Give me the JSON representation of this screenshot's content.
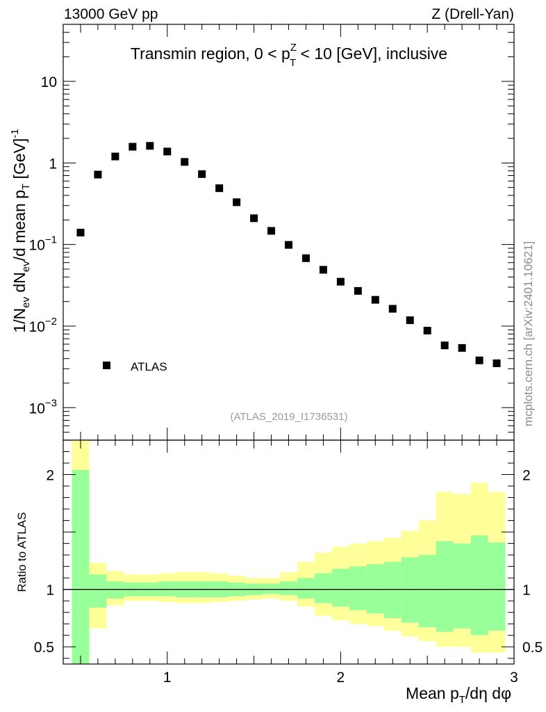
{
  "header": {
    "left": "13000 GeV pp",
    "right": "Z (Drell-Yan)"
  },
  "side_label": "mcplots.cern.ch [arXiv:2401.10621]",
  "reference": "(ATLAS_2019_I1736531)",
  "colors": {
    "band_inner": "#99ff99",
    "band_outer": "#ffff99",
    "marker": "#000000"
  },
  "chart_data": [
    {
      "type": "scatter",
      "panel": "main",
      "title": "Transmin region, 0 < p_T^Z < 10 [GeV], inclusive",
      "title_parts": {
        "a": "Transmin region, 0 < p",
        "sup": "Z",
        "sub": "T",
        "b": " < 10 [GeV], inclusive"
      },
      "ylabel": "1/N_ev dN_ev/d mean p_T [GeV]^-1",
      "ylabel_parts": {
        "p1": "1/N",
        "s1": "ev",
        "p2": " dN",
        "s2": "ev",
        "p3": "/d mean p",
        "s3": "T",
        "p4": " [GeV]",
        "s4": "-1"
      },
      "yscale": "log",
      "ylim": [
        0.0004,
        50
      ],
      "xlim": [
        0.4,
        3.0
      ],
      "yticks": [
        {
          "v": 10,
          "base": "10",
          "exp": ""
        },
        {
          "v": 1,
          "base": "1",
          "exp": ""
        },
        {
          "v": 0.1,
          "base": "10",
          "exp": "−1"
        },
        {
          "v": 0.01,
          "base": "10",
          "exp": "−2"
        },
        {
          "v": 0.001,
          "base": "10",
          "exp": "−3"
        }
      ],
      "legend": [
        {
          "name": "ATLAS",
          "marker": "square",
          "loc": "lower-left"
        }
      ],
      "series": [
        {
          "name": "ATLAS",
          "x": [
            0.5,
            0.6,
            0.7,
            0.8,
            0.9,
            1.0,
            1.1,
            1.2,
            1.3,
            1.4,
            1.5,
            1.6,
            1.7,
            1.8,
            1.9,
            2.0,
            2.1,
            2.2,
            2.3,
            2.4,
            2.5,
            2.6,
            2.7,
            2.8,
            2.9
          ],
          "y": [
            0.14,
            0.72,
            1.2,
            1.58,
            1.62,
            1.38,
            1.03,
            0.73,
            0.49,
            0.33,
            0.21,
            0.147,
            0.099,
            0.068,
            0.049,
            0.035,
            0.027,
            0.021,
            0.0163,
            0.0118,
            0.0088,
            0.0058,
            0.0054,
            0.0038,
            0.0035
          ]
        }
      ]
    },
    {
      "type": "area",
      "panel": "ratio",
      "ylabel": "Ratio to ATLAS",
      "xlabel": "Mean p_T/dη dφ",
      "xlabel_parts": {
        "a": "Mean p",
        "sub": "T",
        "b": "/dη dφ"
      },
      "xlim": [
        0.4,
        3.0
      ],
      "ylim": [
        0.35,
        2.3
      ],
      "xticks": [
        {
          "v": 1,
          "label": "1"
        },
        {
          "v": 2,
          "label": "2"
        },
        {
          "v": 3,
          "label": "3"
        }
      ],
      "yticks": [
        {
          "v": 2,
          "label": "2"
        },
        {
          "v": 1,
          "label": "1"
        },
        {
          "v": 0.5,
          "label": "0.5"
        }
      ],
      "reference_line": 1,
      "bin_edges": [
        0.45,
        0.55,
        0.65,
        0.75,
        0.85,
        0.95,
        1.05,
        1.15,
        1.25,
        1.35,
        1.45,
        1.55,
        1.65,
        1.75,
        1.85,
        1.95,
        2.05,
        2.15,
        2.25,
        2.35,
        2.45,
        2.55,
        2.65,
        2.75,
        2.85,
        2.95
      ],
      "outer_band": {
        "name": "total uncertainty",
        "lo": [
          0.3,
          0.66,
          0.86,
          0.9,
          0.9,
          0.89,
          0.88,
          0.88,
          0.89,
          0.9,
          0.91,
          0.92,
          0.9,
          0.85,
          0.77,
          0.73,
          0.7,
          0.68,
          0.64,
          0.59,
          0.55,
          0.5,
          0.5,
          0.45,
          0.45
        ],
        "hi": [
          2.3,
          1.23,
          1.16,
          1.13,
          1.13,
          1.14,
          1.15,
          1.15,
          1.14,
          1.12,
          1.1,
          1.1,
          1.15,
          1.24,
          1.32,
          1.37,
          1.4,
          1.42,
          1.45,
          1.51,
          1.6,
          1.85,
          1.83,
          1.93,
          1.85
        ]
      },
      "inner_band": {
        "name": "statistical uncertainty",
        "lo": [
          0.3,
          0.84,
          0.92,
          0.94,
          0.94,
          0.94,
          0.93,
          0.93,
          0.93,
          0.94,
          0.95,
          0.96,
          0.95,
          0.92,
          0.88,
          0.85,
          0.82,
          0.79,
          0.75,
          0.71,
          0.67,
          0.63,
          0.66,
          0.6,
          0.64
        ],
        "hi": [
          2.04,
          1.13,
          1.07,
          1.06,
          1.06,
          1.07,
          1.07,
          1.07,
          1.07,
          1.06,
          1.05,
          1.05,
          1.07,
          1.1,
          1.14,
          1.18,
          1.2,
          1.22,
          1.24,
          1.28,
          1.3,
          1.42,
          1.4,
          1.47,
          1.41
        ]
      }
    }
  ]
}
